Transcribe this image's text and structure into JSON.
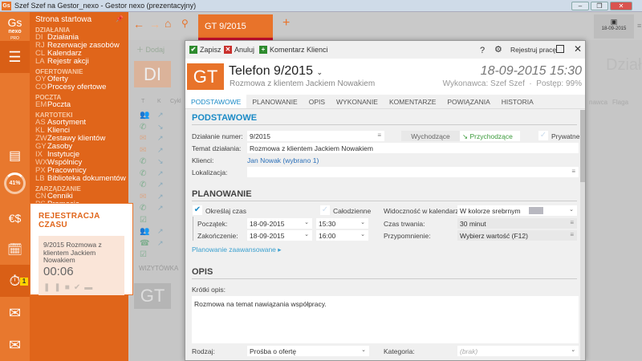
{
  "window": {
    "title": "Szef Szef na Gestor_nexo - Gestor nexo (prezentacyjny)",
    "logo": "Gs"
  },
  "brand": {
    "accent": "#e8732a",
    "menu_bg": "#e0651a",
    "link": "#1a8ac6"
  },
  "rail": {
    "logo_lines": [
      "Gs",
      "nexo",
      "PRO"
    ],
    "progress": "41%",
    "badge": "1",
    "icons": [
      "menu-icon",
      "certificate-icon",
      "progress-ring",
      "currency-icon",
      "calendar-clock-icon",
      "stopwatch-icon",
      "mail-multiple-icon",
      "mail-icon"
    ]
  },
  "menu": {
    "home": "Strona startowa",
    "sections": [
      {
        "title": "DZIAŁANIA",
        "items": [
          {
            "code": "DI",
            "label": "Działania"
          },
          {
            "code": "RJ",
            "label": "Rezerwacje zasobów"
          },
          {
            "code": "CL",
            "label": "Kalendarz"
          },
          {
            "code": "LA",
            "label": "Rejestr akcji"
          }
        ]
      },
      {
        "title": "OFERTOWANIE",
        "items": [
          {
            "code": "OY",
            "label": "Oferty"
          },
          {
            "code": "CO",
            "label": "Procesy ofertowe"
          }
        ]
      },
      {
        "title": "POCZTA",
        "items": [
          {
            "code": "EM",
            "label": "Poczta"
          }
        ]
      },
      {
        "title": "KARTOTEKI",
        "items": [
          {
            "code": "AS",
            "label": "Asortyment"
          },
          {
            "code": "KL",
            "label": "Klienci"
          },
          {
            "code": "ZW",
            "label": "Zestawy klientów"
          },
          {
            "code": "GY",
            "label": "Zasoby"
          },
          {
            "code": "IX",
            "label": "Instytucje"
          },
          {
            "code": "WX",
            "label": "Wspólnicy"
          },
          {
            "code": "PX",
            "label": "Pracownicy"
          },
          {
            "code": "LB",
            "label": "Biblioteka dokumentów"
          }
        ]
      },
      {
        "title": "ZARZĄDZANIE",
        "items": [
          {
            "code": "CN",
            "label": "Cenniki"
          },
          {
            "code": "PS",
            "label": "Promocje"
          }
        ]
      }
    ]
  },
  "timer": {
    "title": "REJESTRACJA CZASU",
    "task": "9/2015 Rozmowa z klientem Jackiem Nowakiem",
    "time": "00:06"
  },
  "topbar": {
    "tab": "GT 9/2015",
    "date": "18-09-2015"
  },
  "background": {
    "add": "Dodaj",
    "badge": "DI",
    "cols": [
      "T",
      "K",
      "Cykl"
    ],
    "right_title": "Działania",
    "right_cols": [
      "nawca",
      "Flaga"
    ],
    "card_tab": "WIZYTÓWKA",
    "card_badge": "GT",
    "row_icons": [
      "group",
      "phone",
      "mail",
      "mail",
      "phone",
      "phone",
      "phone",
      "mail",
      "phone",
      "check",
      "group",
      "phone2",
      "check"
    ]
  },
  "modal": {
    "toolbar": {
      "save": "Zapisz",
      "cancel": "Anuluj",
      "comment": "Komentarz",
      "clients": "Klienci",
      "register": "Rejestruj pracę"
    },
    "badge": "GT",
    "title": "Telefon 9/2015",
    "subtitle": "Rozmowa z klientem Jackiem Nowakiem",
    "datetime": "18-09-2015 15:30",
    "meta": "Wykonawca: Szef Szef  ·  Postęp: 99%",
    "tabs": [
      "PODSTAWOWE",
      "PLANOWANIE",
      "OPIS",
      "WYKONANIE",
      "KOMENTARZE",
      "POWIĄZANIA",
      "HISTORIA"
    ],
    "basic": {
      "heading": "PODSTAWOWE",
      "number_label": "Działanie numer:",
      "number": "9/2015",
      "outgoing": "Wychodzące",
      "incoming": "Przychodzące",
      "private": "Prywatne",
      "subject_label": "Temat działania:",
      "subject": "Rozmowa z klientem Jackiem Nowakiem",
      "clients_label": "Klienci:",
      "clients": "Jan Nowak (wybrano 1)",
      "location_label": "Lokalizacja:",
      "location": ""
    },
    "planning": {
      "heading": "PLANOWANIE",
      "set_time": "Określaj czas",
      "set_time_checked": true,
      "all_day": "Całodzienne",
      "all_day_checked": false,
      "start_label": "Początek:",
      "start_date": "18-09-2015",
      "start_time": "15:30",
      "end_label": "Zakończenie:",
      "end_date": "18-09-2015",
      "end_time": "16:00",
      "visibility_label": "Widoczność w kalendarzu:",
      "visibility": "W kolorze srebrnym",
      "visibility_color": "#b8b8c0",
      "duration_label": "Czas trwania:",
      "duration": "30 minut",
      "reminder_label": "Przypomnienie:",
      "reminder": "Wybierz wartość (F12)",
      "advanced": "Planowanie zaawansowane"
    },
    "desc": {
      "heading": "OPIS",
      "short_label": "Krótki opis:",
      "short": "Rozmowa na temat nawiązania współpracy.",
      "type_label": "Rodzaj:",
      "type": "Prośba o ofertę",
      "category_label": "Kategoria:",
      "category": "(brak)"
    }
  }
}
